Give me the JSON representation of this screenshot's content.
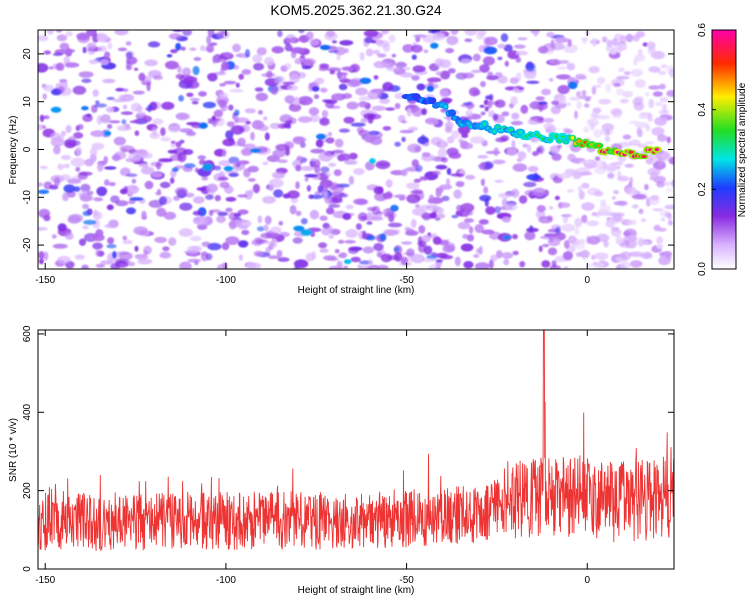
{
  "figure_title": "KOM5.2025.362.21.30.G24",
  "chart_data": [
    {
      "type": "heatmap",
      "title": "KOM5.2025.362.21.30.G24",
      "xlabel": "Height of straight line (km)",
      "ylabel": "Frequency (Hz)",
      "xlim": [
        -152,
        24
      ],
      "ylim": [
        -25,
        25
      ],
      "xticks": [
        -150,
        -100,
        -50,
        0
      ],
      "yticks": [
        -20,
        -10,
        0,
        10,
        20
      ],
      "colorbar": {
        "label": "Normalized spectral amplitude",
        "range": [
          0.0,
          0.6
        ],
        "ticks": [
          "0.0",
          "0.2",
          "0.4",
          "0.6"
        ],
        "colormap": "white-purple-blue-cyan-green-yellow-red-magenta"
      },
      "ridge": {
        "description": "high-amplitude narrow band",
        "points_km_hz": [
          [
            -50,
            11
          ],
          [
            -45,
            10
          ],
          [
            -40,
            9
          ],
          [
            -35,
            6
          ],
          [
            -30,
            5
          ],
          [
            -25,
            4
          ],
          [
            -20,
            3.5
          ],
          [
            -15,
            3
          ],
          [
            -10,
            2.5
          ],
          [
            -5,
            2
          ],
          [
            0,
            1
          ],
          [
            5,
            0
          ],
          [
            10,
            -1
          ],
          [
            15,
            -1
          ],
          [
            20,
            0
          ]
        ],
        "peak_amplitude": 0.6,
        "peak_near_km": [
          0,
          20
        ]
      }
    },
    {
      "type": "line",
      "xlabel": "Height of straight line (km)",
      "ylabel": "SNR (10 * v/v)",
      "xlim": [
        -152,
        24
      ],
      "ylim": [
        0,
        610
      ],
      "xticks": [
        -150,
        -100,
        -50,
        0
      ],
      "yticks": [
        0,
        200,
        400,
        600
      ],
      "series_color": "#ee3333",
      "baseline_segments_km_snr": [
        [
          -152,
          120
        ],
        [
          -60,
          125
        ],
        [
          -30,
          140
        ],
        [
          -20,
          175
        ],
        [
          -10,
          190
        ],
        [
          10,
          170
        ],
        [
          24,
          185
        ]
      ],
      "fluctuation_amplitude": 75,
      "peak": {
        "x": -12,
        "y": 610
      }
    }
  ],
  "colors": {
    "purple": "#8a2be2",
    "blue": "#1e3cff",
    "cyan": "#00e5e5",
    "green": "#22dd22",
    "yellow": "#ffee00",
    "red": "#ff2a00",
    "magenta": "#ff00aa",
    "line_red": "#ee3333"
  }
}
